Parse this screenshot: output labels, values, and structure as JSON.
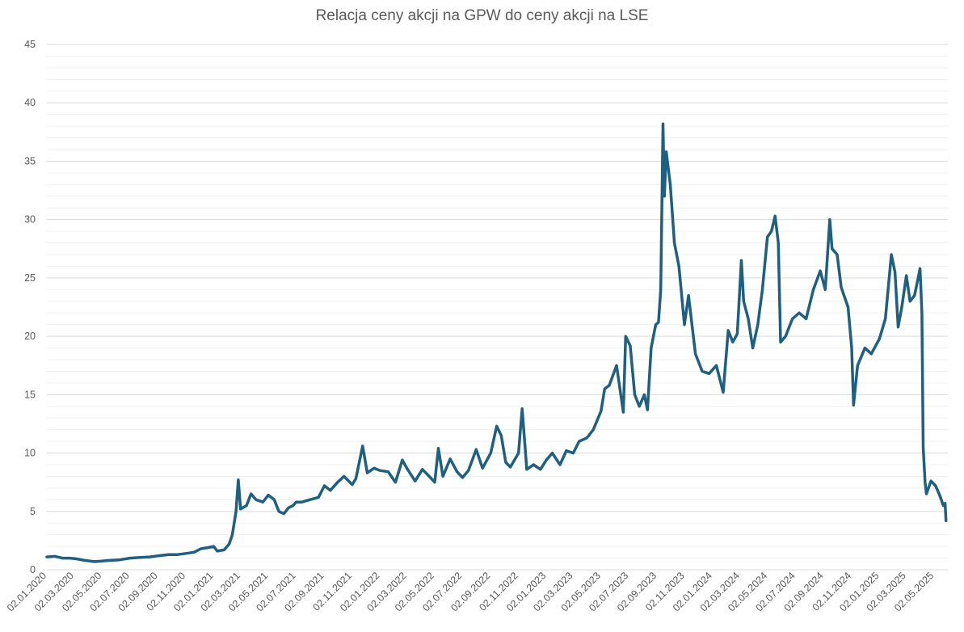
{
  "chart_data": {
    "type": "line",
    "title": "Relacja ceny akcji na GPW do ceny akcji na LSE",
    "xlabel": "",
    "ylabel": "",
    "ylim": [
      0,
      45
    ],
    "y_ticks": [
      0,
      5,
      10,
      15,
      20,
      25,
      30,
      35,
      40,
      45
    ],
    "x_tick_labels": [
      "02.01.2020",
      "02.03.2020",
      "02.05.2020",
      "02.07.2020",
      "02.09.2020",
      "02.11.2020",
      "02.01.2021",
      "02.03.2021",
      "02.05.2021",
      "02.07.2021",
      "02.09.2021",
      "02.11.2021",
      "02.01.2022",
      "02.03.2022",
      "02.05.2022",
      "02.07.2022",
      "02.09.2022",
      "02.11.2022",
      "02.01.2023",
      "02.03.2023",
      "02.05.2023",
      "02.07.2023",
      "02.09.2023",
      "02.11.2023",
      "02.01.2024",
      "02.03.2024",
      "02.05.2024",
      "02.07.2024",
      "02.09.2024",
      "02.11.2024",
      "02.01.2025",
      "02.03.2025",
      "02.05.2025"
    ],
    "x_range": [
      "2020-01-02",
      "2025-06-01"
    ],
    "grid": "horizontal major and minor gridlines",
    "legend": "none",
    "series": [
      {
        "color": "#1f5f7f",
        "points": [
          [
            "2020-01-02",
            1.1
          ],
          [
            "2020-01-20",
            1.15
          ],
          [
            "2020-02-05",
            1.0
          ],
          [
            "2020-02-20",
            1.0
          ],
          [
            "2020-03-05",
            0.95
          ],
          [
            "2020-03-25",
            0.8
          ],
          [
            "2020-04-15",
            0.7
          ],
          [
            "2020-05-02",
            0.75
          ],
          [
            "2020-05-20",
            0.8
          ],
          [
            "2020-06-10",
            0.85
          ],
          [
            "2020-07-02",
            1.0
          ],
          [
            "2020-07-25",
            1.05
          ],
          [
            "2020-08-15",
            1.1
          ],
          [
            "2020-09-02",
            1.2
          ],
          [
            "2020-09-25",
            1.3
          ],
          [
            "2020-10-15",
            1.3
          ],
          [
            "2020-11-02",
            1.4
          ],
          [
            "2020-11-20",
            1.5
          ],
          [
            "2020-12-05",
            1.8
          ],
          [
            "2020-12-20",
            1.9
          ],
          [
            "2021-01-02",
            2.0
          ],
          [
            "2021-01-10",
            1.6
          ],
          [
            "2021-01-25",
            1.7
          ],
          [
            "2021-02-05",
            2.2
          ],
          [
            "2021-02-12",
            3.0
          ],
          [
            "2021-02-20",
            5.0
          ],
          [
            "2021-02-25",
            7.7
          ],
          [
            "2021-03-02",
            5.2
          ],
          [
            "2021-03-15",
            5.5
          ],
          [
            "2021-03-25",
            6.5
          ],
          [
            "2021-04-05",
            6.0
          ],
          [
            "2021-04-20",
            5.8
          ],
          [
            "2021-05-02",
            6.4
          ],
          [
            "2021-05-15",
            6.0
          ],
          [
            "2021-05-25",
            5.0
          ],
          [
            "2021-06-05",
            4.8
          ],
          [
            "2021-06-15",
            5.3
          ],
          [
            "2021-06-25",
            5.5
          ],
          [
            "2021-07-02",
            5.8
          ],
          [
            "2021-07-15",
            5.8
          ],
          [
            "2021-08-01",
            6.0
          ],
          [
            "2021-08-20",
            6.2
          ],
          [
            "2021-09-02",
            7.2
          ],
          [
            "2021-09-15",
            6.8
          ],
          [
            "2021-10-01",
            7.5
          ],
          [
            "2021-10-15",
            8.0
          ],
          [
            "2021-11-02",
            7.3
          ],
          [
            "2021-11-10",
            7.8
          ],
          [
            "2021-11-25",
            10.6
          ],
          [
            "2021-12-05",
            8.3
          ],
          [
            "2021-12-20",
            8.7
          ],
          [
            "2022-01-02",
            8.5
          ],
          [
            "2022-01-20",
            8.4
          ],
          [
            "2022-02-05",
            7.5
          ],
          [
            "2022-02-20",
            9.4
          ],
          [
            "2022-03-02",
            8.7
          ],
          [
            "2022-03-20",
            7.6
          ],
          [
            "2022-04-05",
            8.6
          ],
          [
            "2022-04-20",
            8.0
          ],
          [
            "2022-05-02",
            7.5
          ],
          [
            "2022-05-10",
            10.4
          ],
          [
            "2022-05-20",
            8.0
          ],
          [
            "2022-06-05",
            9.5
          ],
          [
            "2022-06-20",
            8.4
          ],
          [
            "2022-07-02",
            7.9
          ],
          [
            "2022-07-15",
            8.5
          ],
          [
            "2022-08-01",
            10.3
          ],
          [
            "2022-08-15",
            8.7
          ],
          [
            "2022-09-02",
            10.0
          ],
          [
            "2022-09-15",
            12.3
          ],
          [
            "2022-09-25",
            11.5
          ],
          [
            "2022-10-05",
            9.2
          ],
          [
            "2022-10-15",
            8.8
          ],
          [
            "2022-11-02",
            10.0
          ],
          [
            "2022-11-10",
            13.8
          ],
          [
            "2022-11-20",
            8.6
          ],
          [
            "2022-12-05",
            9.0
          ],
          [
            "2022-12-20",
            8.6
          ],
          [
            "2023-01-02",
            9.4
          ],
          [
            "2023-01-15",
            10.0
          ],
          [
            "2023-02-01",
            9.0
          ],
          [
            "2023-02-15",
            10.2
          ],
          [
            "2023-03-02",
            10.0
          ],
          [
            "2023-03-15",
            11.0
          ],
          [
            "2023-04-01",
            11.3
          ],
          [
            "2023-04-15",
            12.0
          ],
          [
            "2023-05-02",
            13.6
          ],
          [
            "2023-05-10",
            15.5
          ],
          [
            "2023-05-20",
            15.8
          ],
          [
            "2023-06-05",
            17.5
          ],
          [
            "2023-06-20",
            13.5
          ],
          [
            "2023-06-25",
            20.0
          ],
          [
            "2023-07-05",
            19.2
          ],
          [
            "2023-07-15",
            15.0
          ],
          [
            "2023-07-25",
            14.0
          ],
          [
            "2023-08-05",
            15.0
          ],
          [
            "2023-08-12",
            13.7
          ],
          [
            "2023-08-20",
            19.0
          ],
          [
            "2023-08-30",
            21.0
          ],
          [
            "2023-09-05",
            21.2
          ],
          [
            "2023-09-10",
            24.0
          ],
          [
            "2023-09-15",
            38.2
          ],
          [
            "2023-09-18",
            32.0
          ],
          [
            "2023-09-22",
            35.8
          ],
          [
            "2023-10-01",
            33.0
          ],
          [
            "2023-10-10",
            28.0
          ],
          [
            "2023-10-20",
            26.0
          ],
          [
            "2023-11-01",
            21.0
          ],
          [
            "2023-11-10",
            23.5
          ],
          [
            "2023-11-25",
            18.5
          ],
          [
            "2023-12-10",
            17.0
          ],
          [
            "2023-12-25",
            16.8
          ],
          [
            "2024-01-10",
            17.5
          ],
          [
            "2024-01-25",
            15.2
          ],
          [
            "2024-02-05",
            20.5
          ],
          [
            "2024-02-15",
            19.5
          ],
          [
            "2024-02-25",
            20.2
          ],
          [
            "2024-03-05",
            26.5
          ],
          [
            "2024-03-10",
            23.0
          ],
          [
            "2024-03-20",
            21.5
          ],
          [
            "2024-03-30",
            19.0
          ],
          [
            "2024-04-10",
            21.0
          ],
          [
            "2024-04-20",
            24.0
          ],
          [
            "2024-05-01",
            28.5
          ],
          [
            "2024-05-10",
            29.0
          ],
          [
            "2024-05-18",
            30.3
          ],
          [
            "2024-05-25",
            28.0
          ],
          [
            "2024-05-30",
            19.5
          ],
          [
            "2024-06-10",
            20.0
          ],
          [
            "2024-06-25",
            21.5
          ],
          [
            "2024-07-10",
            22.0
          ],
          [
            "2024-07-25",
            21.5
          ],
          [
            "2024-08-10",
            24.0
          ],
          [
            "2024-08-25",
            25.6
          ],
          [
            "2024-09-05",
            24.0
          ],
          [
            "2024-09-15",
            30.0
          ],
          [
            "2024-09-20",
            27.5
          ],
          [
            "2024-10-01",
            27.0
          ],
          [
            "2024-10-10",
            24.2
          ],
          [
            "2024-10-25",
            22.5
          ],
          [
            "2024-11-02",
            19.0
          ],
          [
            "2024-11-06",
            14.1
          ],
          [
            "2024-11-15",
            17.5
          ],
          [
            "2024-12-01",
            19.0
          ],
          [
            "2024-12-15",
            18.5
          ],
          [
            "2025-01-02",
            19.8
          ],
          [
            "2025-01-15",
            21.5
          ],
          [
            "2025-01-28",
            27.0
          ],
          [
            "2025-02-05",
            25.5
          ],
          [
            "2025-02-12",
            20.8
          ],
          [
            "2025-02-20",
            22.5
          ],
          [
            "2025-03-02",
            25.2
          ],
          [
            "2025-03-10",
            23.0
          ],
          [
            "2025-03-20",
            23.5
          ],
          [
            "2025-04-01",
            25.8
          ],
          [
            "2025-04-05",
            22.0
          ],
          [
            "2025-04-08",
            10.5
          ],
          [
            "2025-04-12",
            7.5
          ],
          [
            "2025-04-15",
            6.5
          ],
          [
            "2025-04-25",
            7.6
          ],
          [
            "2025-05-05",
            7.2
          ],
          [
            "2025-05-15",
            6.3
          ],
          [
            "2025-05-22",
            5.5
          ],
          [
            "2025-05-26",
            5.7
          ],
          [
            "2025-05-28",
            4.2
          ]
        ]
      }
    ]
  }
}
